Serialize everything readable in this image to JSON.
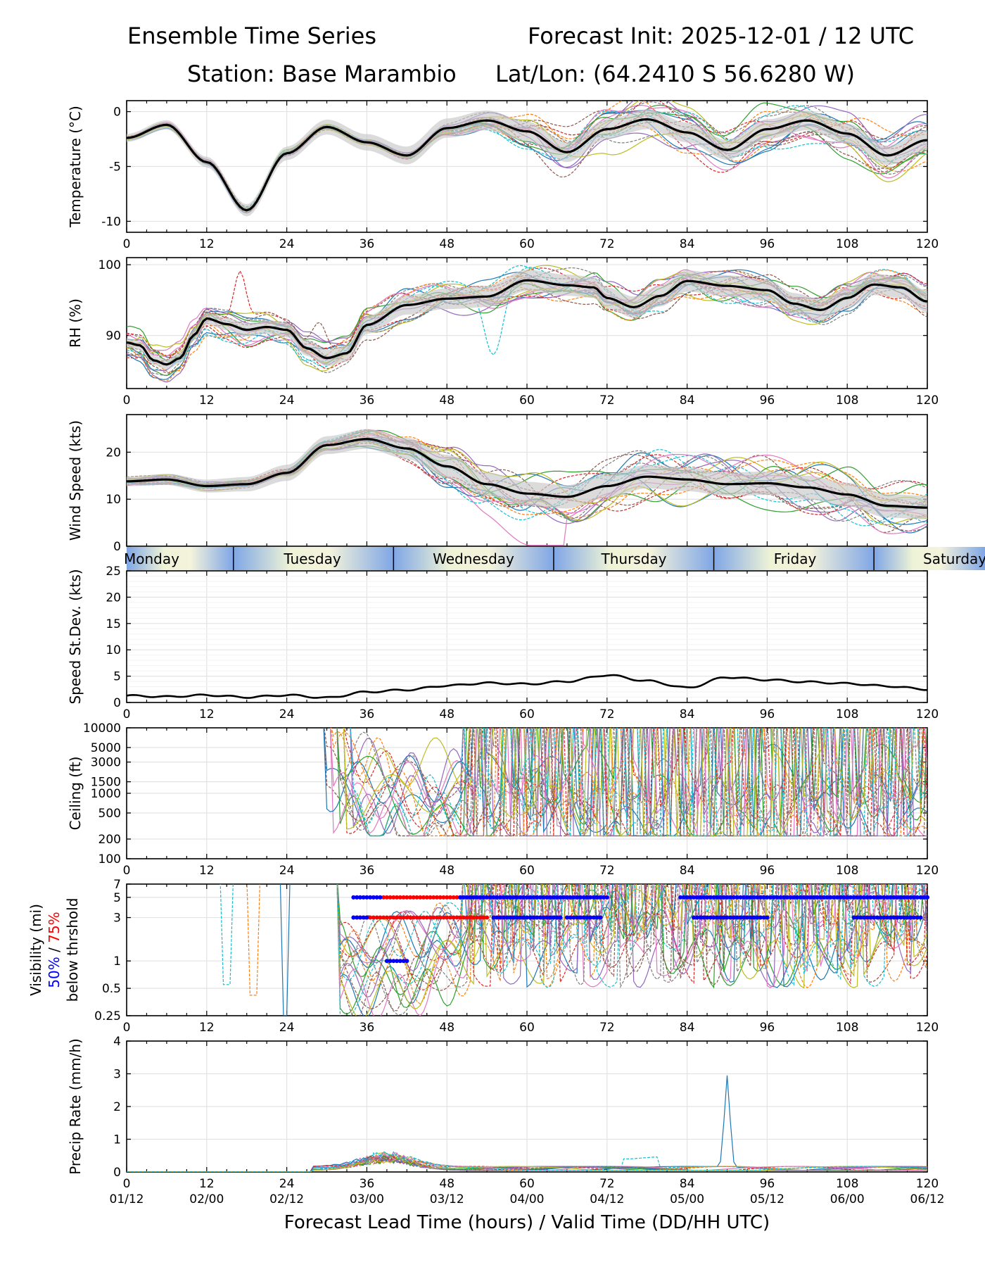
{
  "header": {
    "title_left": "Ensemble Time Series",
    "title_right": "Forecast Init: 2025-12-01 / 12 UTC",
    "station": "Station: Base Marambio",
    "latlon": "Lat/Lon: (64.2410 S 56.6280 W)"
  },
  "colors": {
    "mean": "#000000",
    "spread": "#c8c8c8",
    "vis50": "#0000ff",
    "vis75": "#ff0000",
    "grid": "#e3e3e3",
    "members": [
      "#1f77b4",
      "#ff7f0e",
      "#2ca02c",
      "#d62728",
      "#9467bd",
      "#8c564b",
      "#e377c2",
      "#7f7f7f",
      "#bcbd22",
      "#17becf"
    ]
  },
  "day_band": [
    "Monday",
    "Tuesday",
    "Wednesday",
    "Thursday",
    "Friday",
    "Saturday"
  ],
  "xaxis": {
    "label": "Forecast Lead Time (hours) / Valid Time (DD/HH UTC)",
    "lead_ticks": [
      "0",
      "12",
      "24",
      "36",
      "48",
      "60",
      "72",
      "84",
      "96",
      "108",
      "120"
    ],
    "valid_ticks": [
      "01/12",
      "02/00",
      "02/12",
      "03/00",
      "03/12",
      "04/00",
      "04/12",
      "05/00",
      "05/12",
      "06/00",
      "06/12"
    ]
  },
  "chart_data": [
    {
      "type": "line",
      "id": "temp",
      "ylabel": "Temperature (°C)",
      "ylim": [
        -11,
        1
      ],
      "yticks": [
        "0",
        "-5",
        "-10"
      ],
      "mean": {
        "x": [
          0,
          6,
          12,
          18,
          24,
          30,
          36,
          42,
          48,
          54,
          60,
          66,
          72,
          78,
          84,
          90,
          96,
          102,
          108,
          114,
          120
        ],
        "y": [
          -2.4,
          -1.2,
          -4.6,
          -9.0,
          -3.8,
          -1.4,
          -2.8,
          -4.0,
          -1.5,
          -0.8,
          -1.8,
          -3.7,
          -1.6,
          -0.7,
          -1.9,
          -3.5,
          -1.6,
          -0.8,
          -2.0,
          -4.0,
          -2.6
        ]
      },
      "spread": 0.9
    },
    {
      "type": "line",
      "id": "rh",
      "ylabel": "RH (%)",
      "ylim": [
        82.5,
        101
      ],
      "yticks": [
        "100",
        "90"
      ],
      "mean": {
        "x": [
          0,
          2,
          4,
          6,
          8,
          10,
          12,
          15,
          18,
          21,
          24,
          27,
          30,
          33,
          36,
          42,
          48,
          54,
          60,
          66,
          70,
          72,
          76,
          80,
          84,
          90,
          96,
          100,
          104,
          108,
          112,
          116,
          120
        ],
        "y": [
          89.0,
          88.6,
          86.5,
          85.9,
          86.8,
          90.0,
          92.4,
          91.6,
          90.8,
          91.2,
          90.8,
          88.2,
          86.8,
          87.5,
          91.5,
          94.3,
          95.2,
          95.5,
          97.8,
          97.1,
          96.8,
          95.3,
          94.0,
          95.6,
          97.7,
          97.0,
          96.4,
          94.5,
          93.6,
          95.3,
          97.2,
          96.8,
          94.8
        ]
      },
      "spread": 1.5
    },
    {
      "type": "line",
      "id": "wind",
      "ylabel": "Wind Speed (kts)",
      "ylim": [
        0,
        28
      ],
      "yticks": [
        "20",
        "10",
        "0"
      ],
      "mean": {
        "x": [
          0,
          6,
          12,
          18,
          24,
          30,
          36,
          42,
          48,
          54,
          60,
          66,
          72,
          78,
          84,
          90,
          96,
          102,
          108,
          114,
          120
        ],
        "y": [
          13.8,
          14.2,
          12.8,
          13.2,
          15.6,
          21.5,
          22.8,
          20.8,
          17.0,
          13.2,
          11.2,
          10.5,
          12.8,
          14.8,
          14.2,
          13.2,
          13.4,
          12.5,
          11.0,
          8.6,
          8.2
        ]
      },
      "spread": 2.5
    },
    {
      "type": "line",
      "id": "speedsd",
      "ylabel": "Speed St.Dev. (kts)",
      "ylim": [
        0,
        25
      ],
      "yticks": [
        "25",
        "20",
        "15",
        "10",
        "5",
        "0"
      ],
      "mean": {
        "x": [
          0,
          6,
          12,
          18,
          24,
          30,
          36,
          42,
          48,
          54,
          60,
          66,
          72,
          78,
          84,
          90,
          96,
          102,
          108,
          114,
          120
        ],
        "y": [
          1.3,
          1.1,
          1.4,
          1.0,
          1.4,
          0.9,
          2.0,
          2.4,
          3.2,
          3.7,
          3.5,
          4.0,
          5.2,
          4.1,
          2.8,
          4.8,
          4.3,
          3.9,
          3.6,
          3.1,
          2.5
        ]
      }
    },
    {
      "type": "line",
      "id": "ceiling",
      "ylabel": "Ceiling (ft)",
      "yscale": "log",
      "ylim": [
        100,
        10000
      ],
      "yticks": [
        "10000",
        "5000",
        "3000",
        "1500",
        "1000",
        "500",
        "200",
        "100"
      ]
    },
    {
      "type": "line",
      "id": "vis",
      "ylabel_lines": [
        "Visibility (mi)",
        "50%",
        "/",
        "75%",
        "below thrshold"
      ],
      "yscale": "log",
      "ylim": [
        0.25,
        7
      ],
      "yticks": [
        "7",
        "5",
        "3",
        "1",
        "0.5",
        "0.25"
      ],
      "p75_at_5mi": [
        [
          34,
          50
        ],
        [
          50,
          72
        ],
        [
          85,
          120
        ]
      ],
      "p50_at_5mi": [
        [
          34,
          38
        ],
        [
          50,
          72
        ],
        [
          83,
          120
        ]
      ],
      "p75_at_3mi": [
        [
          34,
          54
        ],
        [
          55,
          65
        ],
        [
          66,
          71
        ],
        [
          85,
          96
        ],
        [
          109,
          119
        ]
      ],
      "p50_at_3mi": [
        [
          34,
          36
        ],
        [
          55,
          65
        ],
        [
          66,
          71
        ],
        [
          85,
          96
        ],
        [
          109,
          119
        ]
      ],
      "p50_at_1mi": [
        [
          39,
          42
        ]
      ]
    },
    {
      "type": "line",
      "id": "precip",
      "ylabel": "Precip Rate (mm/h)",
      "ylim": [
        0,
        4
      ],
      "yticks": [
        "4",
        "3",
        "2",
        "1",
        "0"
      ],
      "peak_member": {
        "x": 90,
        "y": 2.8
      }
    }
  ]
}
